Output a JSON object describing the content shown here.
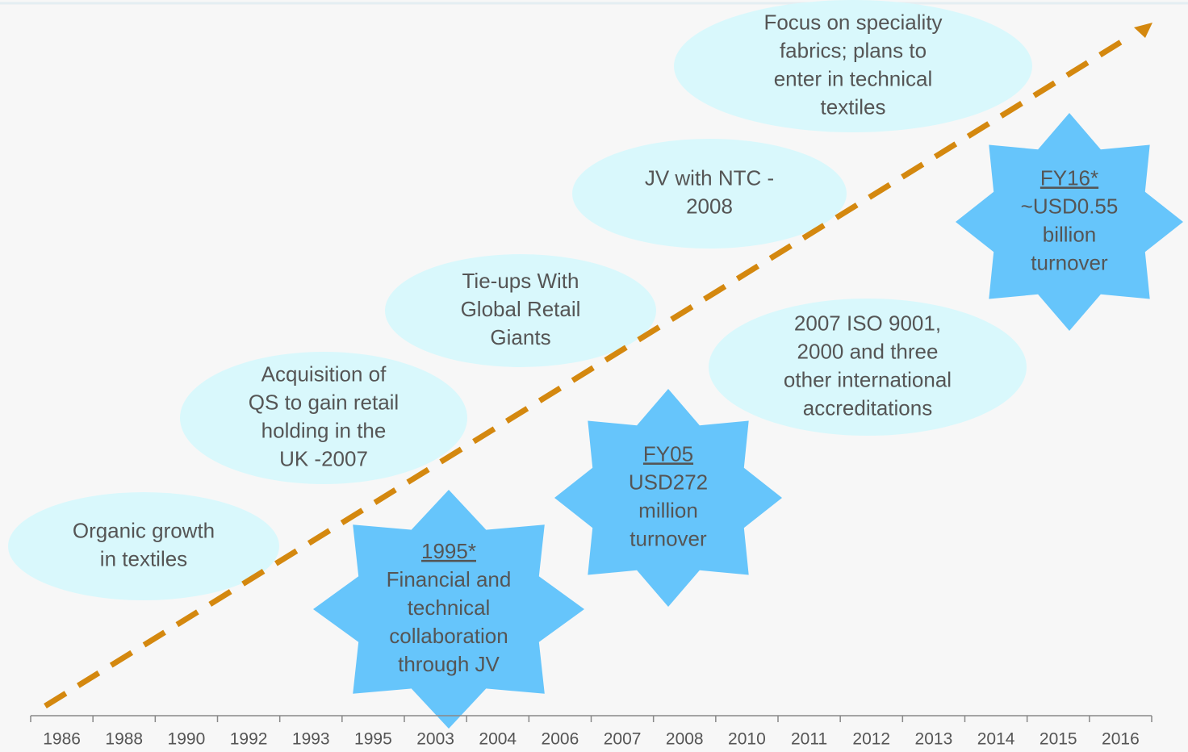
{
  "events": [
    {
      "lines": [
        "Organic growth",
        "in textiles"
      ]
    },
    {
      "lines": [
        "Acquisition of",
        "QS to gain retail",
        "holding in the",
        "UK -2007"
      ]
    },
    {
      "lines": [
        "Tie-ups With",
        "Global Retail",
        "Giants"
      ]
    },
    {
      "lines": [
        "JV with NTC -",
        "2008"
      ]
    },
    {
      "lines": [
        "Focus on speciality",
        "fabrics; plans to",
        "enter in technical",
        "textiles"
      ]
    },
    {
      "lines": [
        "2007 ISO 9001,",
        "2000 and three",
        "other international",
        "accreditations"
      ]
    }
  ],
  "milestones": [
    {
      "title": "1995*",
      "lines": [
        "Financial and",
        "technical",
        "collaboration",
        "through JV"
      ]
    },
    {
      "title": "FY05",
      "lines": [
        "USD272",
        "million",
        "turnover"
      ]
    },
    {
      "title": "FY16*",
      "lines": [
        "~USD0.55",
        "billion",
        "turnover"
      ]
    }
  ],
  "timeline": {
    "years": [
      "1986",
      "1988",
      "1990",
      "1992",
      "1993",
      "1995",
      "2003",
      "2004",
      "2006",
      "2007",
      "2008",
      "2010",
      "2011",
      "2012",
      "2013",
      "2014",
      "2015",
      "2016"
    ]
  }
}
